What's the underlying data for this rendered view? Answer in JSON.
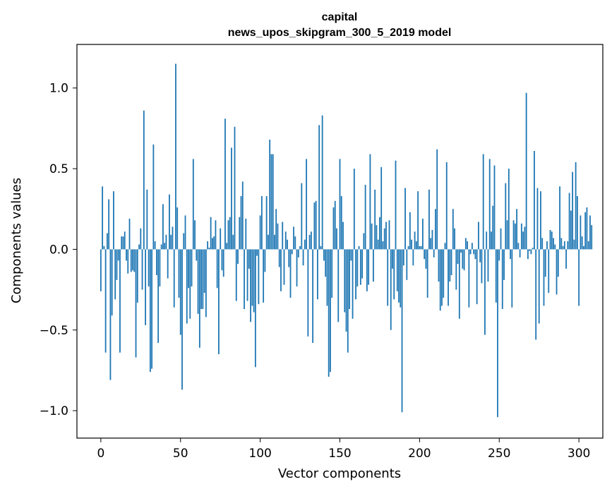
{
  "chart_data": {
    "type": "bar",
    "title": "capital",
    "subtitle": "news_upos_skipgram_300_5_2019 model",
    "xlabel": "Vector components",
    "ylabel": "Components values",
    "xlim": [
      -15,
      315
    ],
    "ylim": [
      -1.17,
      1.27
    ],
    "xticks": [
      0,
      50,
      100,
      150,
      200,
      250,
      300
    ],
    "yticks": [
      -1.0,
      -0.5,
      0.0,
      0.5,
      1.0
    ],
    "ytick_labels": [
      "−1.0",
      "−0.5",
      "0.0",
      "0.5",
      "1.0"
    ],
    "bar_color": "#1f77b4",
    "grid": false,
    "values": [
      -0.26,
      0.39,
      0.02,
      -0.64,
      0.1,
      0.31,
      -0.81,
      -0.41,
      0.36,
      -0.31,
      -0.19,
      -0.07,
      -0.64,
      0.08,
      0.08,
      0.11,
      -0.07,
      -0.15,
      0.19,
      -0.14,
      -0.13,
      -0.14,
      -0.67,
      -0.33,
      0.03,
      0.13,
      -0.25,
      0.86,
      -0.47,
      0.37,
      -0.23,
      -0.76,
      -0.74,
      0.65,
      0.05,
      -0.16,
      -0.58,
      -0.23,
      0.03,
      0.28,
      0.04,
      0.09,
      -0.18,
      0.34,
      0.09,
      0.14,
      -0.36,
      1.15,
      0.26,
      -0.3,
      -0.53,
      -0.87,
      0.1,
      0.21,
      -0.46,
      -0.24,
      -0.43,
      -0.23,
      0.56,
      0.18,
      -0.07,
      -0.4,
      -0.61,
      -0.37,
      -0.37,
      -0.27,
      -0.42,
      0.05,
      0.01,
      0.2,
      0.07,
      0.08,
      0.18,
      -0.24,
      -0.65,
      0.13,
      -0.13,
      -0.17,
      0.81,
      0.04,
      0.18,
      0.2,
      0.63,
      0.09,
      0.76,
      -0.32,
      -0.09,
      0.2,
      0.33,
      0.42,
      -0.37,
      0.19,
      -0.32,
      -0.12,
      -0.45,
      -0.35,
      -0.39,
      -0.73,
      -0.04,
      -0.34,
      0.21,
      0.33,
      -0.33,
      -0.14,
      0.33,
      0.09,
      0.68,
      0.59,
      0.59,
      0.09,
      0.25,
      0.16,
      -0.11,
      -0.26,
      0.17,
      -0.22,
      0.11,
      0.06,
      -0.11,
      -0.3,
      -0.03,
      0.14,
      0.08,
      -0.23,
      -0.05,
      0.02,
      0.41,
      -0.1,
      0.06,
      0.56,
      -0.54,
      0.09,
      0.11,
      -0.58,
      0.29,
      0.3,
      -0.31,
      0.77,
      0.02,
      0.83,
      -0.07,
      -0.17,
      -0.35,
      -0.79,
      -0.76,
      -0.3,
      0.26,
      0.3,
      0.13,
      -0.45,
      0.56,
      0.33,
      0.17,
      -0.39,
      -0.51,
      -0.64,
      -0.37,
      -0.07,
      -0.43,
      0.5,
      -0.31,
      -0.23,
      0.02,
      -0.22,
      -0.18,
      0.1,
      0.4,
      -0.26,
      -0.22,
      0.59,
      0.16,
      -0.2,
      0.37,
      0.15,
      0.06,
      0.2,
      0.51,
      0.05,
      0.13,
      0.17,
      -0.35,
      0.18,
      -0.5,
      -0.12,
      -0.31,
      0.55,
      -0.26,
      -0.33,
      -0.36,
      -1.01,
      -0.1,
      0.38,
      -0.19,
      0.02,
      0.23,
      0.06,
      -0.1,
      0.11,
      0.05,
      0.36,
      0.02,
      0.02,
      0.19,
      -0.06,
      -0.12,
      -0.3,
      0.37,
      0.07,
      0.12,
      -0.05,
      0.25,
      0.62,
      -0.2,
      -0.38,
      -0.35,
      -0.3,
      0.04,
      0.54,
      -0.35,
      -0.2,
      -0.16,
      0.25,
      0.13,
      -0.25,
      -0.09,
      -0.43,
      -0.02,
      -0.12,
      -0.13,
      0.07,
      0.05,
      -0.36,
      -0.03,
      0.04,
      -0.03,
      -0.06,
      -0.34,
      0.17,
      -0.08,
      -0.21,
      0.59,
      -0.53,
      0.11,
      -0.2,
      0.56,
      0.11,
      0.27,
      0.52,
      -0.33,
      -1.04,
      -0.07,
      0.13,
      -0.37,
      -0.19,
      0.41,
      0.18,
      0.5,
      -0.06,
      -0.36,
      0.18,
      0.16,
      0.25,
      0.04,
      -0.05,
      0.16,
      0.11,
      0.14,
      0.97,
      -0.06,
      -0.01,
      -0.03,
      0.01,
      0.61,
      -0.56,
      0.38,
      -0.46,
      0.36,
      0.07,
      -0.35,
      -0.17,
      0.05,
      -0.27,
      0.12,
      0.11,
      0.07,
      0.03,
      -0.28,
      -0.17,
      0.39,
      0.07,
      0.02,
      0.05,
      -0.12,
      0.05,
      0.35,
      0.24,
      0.48,
      0.06,
      0.54,
      0.33,
      -0.35,
      0.21,
      0.08,
      0.02,
      0.23,
      0.26,
      0.05,
      0.21,
      0.15
    ]
  }
}
